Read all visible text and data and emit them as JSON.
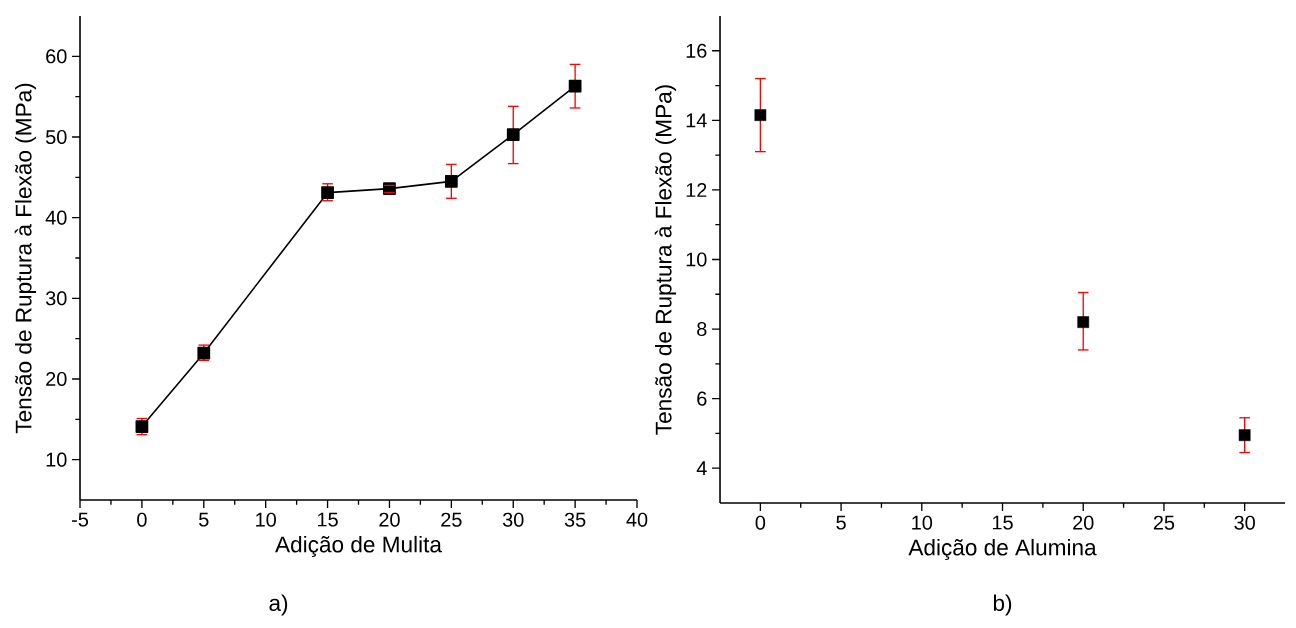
{
  "chart_data": [
    {
      "type": "line",
      "title": "a)",
      "xlabel": "Adição de Mulita",
      "ylabel": "Tensão de Ruptura à Flexão (MPa)",
      "x": [
        0,
        5,
        15,
        20,
        25,
        30,
        35
      ],
      "values": [
        14.1,
        23.2,
        43.1,
        43.6,
        44.5,
        50.3,
        56.3
      ],
      "errors": [
        [
          13.1,
          15.1
        ],
        [
          22.3,
          24.2
        ],
        [
          42.1,
          44.2
        ],
        [
          43.1,
          44.0
        ],
        [
          42.4,
          46.6
        ],
        [
          46.7,
          53.8
        ],
        [
          53.6,
          59.0
        ]
      ],
      "color": "#000000",
      "marker": "square",
      "line_style": "solid",
      "xlim": [
        -5,
        40
      ],
      "xticks": [
        -5,
        0,
        5,
        10,
        15,
        20,
        25,
        30,
        35,
        40
      ],
      "ylim": [
        5,
        65
      ],
      "yticks": [
        10,
        20,
        30,
        40,
        50,
        60
      ],
      "grid": false
    },
    {
      "type": "scatter",
      "title": "b)",
      "xlabel": "Adição de Alumina",
      "ylabel": "Tensão de Ruptura à Flexão (MPa)",
      "x": [
        0,
        20,
        30
      ],
      "values": [
        14.15,
        8.2,
        4.95
      ],
      "errors": [
        [
          13.1,
          15.2
        ],
        [
          7.4,
          9.05
        ],
        [
          4.45,
          5.45
        ]
      ],
      "color": "#000000",
      "marker": "square",
      "xlim": [
        -2.5,
        32.5
      ],
      "xticks": [
        0,
        5,
        10,
        15,
        20,
        25,
        30
      ],
      "ylim": [
        3,
        17
      ],
      "yticks": [
        4,
        6,
        8,
        10,
        12,
        14,
        16
      ],
      "grid": false
    }
  ]
}
